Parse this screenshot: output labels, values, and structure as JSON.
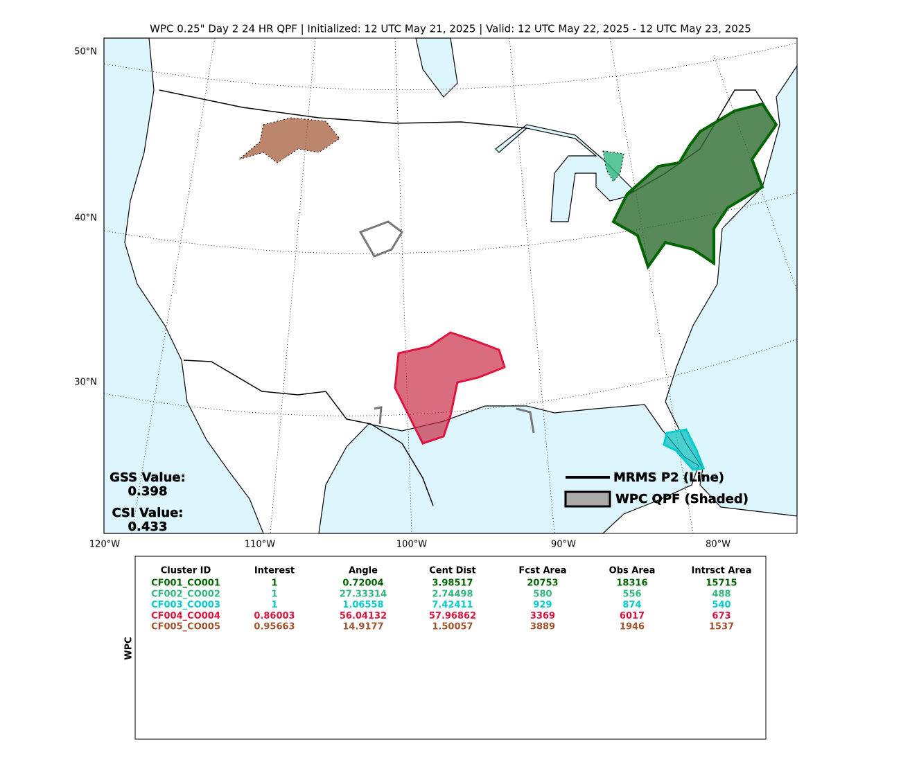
{
  "title": "WPC 0.25\" Day 2 24 HR QPF | Initialized: 12 UTC May 21, 2025 | Valid: 12 UTC May 22, 2025 - 12 UTC May 23, 2025",
  "map": {
    "lat_labels": [
      "50°N",
      "40°N",
      "30°N"
    ],
    "lon_labels": [
      "120°W",
      "110°W",
      "100°W",
      "90°W",
      "80°W"
    ]
  },
  "legend": [
    "MRMS P2 (Line)",
    "WPC QPF (Shaded)"
  ],
  "scores": {
    "gss_label": "GSS Value:",
    "gss": "0.398",
    "csi_label": "CSI Value:",
    "csi": "0.433"
  },
  "table": {
    "side_label": "WPC",
    "header": [
      "Cluster ID",
      "Interest",
      "Angle",
      "Cent Dist",
      "Fcst Area",
      "Obs Area",
      "Intrsct Area"
    ],
    "row_colors": [
      "#006400",
      "#2fb77f",
      "#00cccc",
      "#dc143c",
      "#a0522d"
    ],
    "rows": [
      [
        "CF001_CO001",
        1,
        0.72004,
        3.98517,
        20753,
        18316,
        15715
      ],
      [
        "CF002_CO002",
        1,
        27.33314,
        2.74498,
        580,
        556,
        488
      ],
      [
        "CF003_CO003",
        1,
        1.06558,
        7.42411,
        929,
        874,
        540
      ],
      [
        "CF004_CO004",
        0.86003,
        56.04132,
        57.96862,
        3369,
        6017,
        673
      ],
      [
        "CF005_CO005",
        0.95663,
        14.9177,
        1.50057,
        3889,
        1946,
        1537
      ]
    ]
  }
}
